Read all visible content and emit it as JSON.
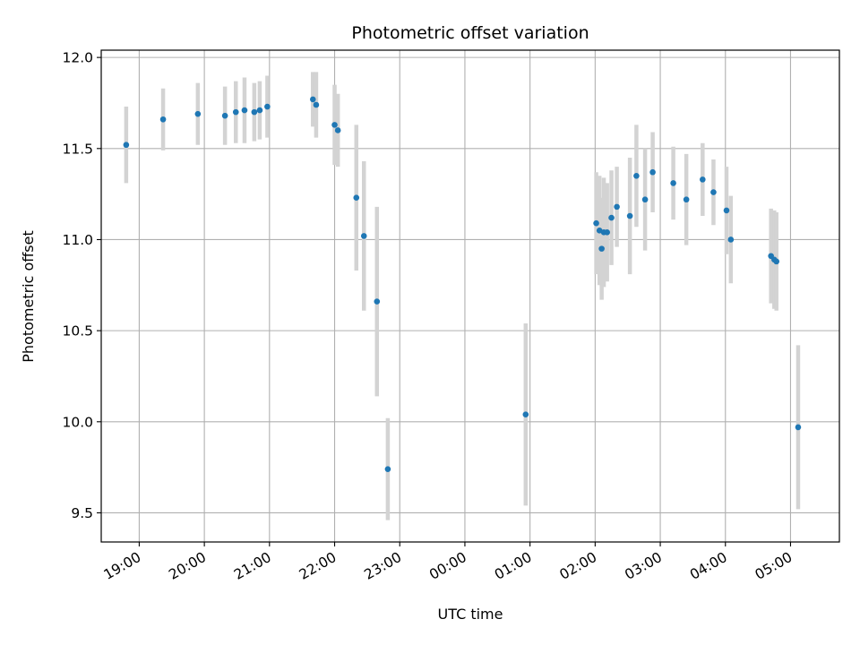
{
  "chart_data": {
    "type": "scatter",
    "title": "Photometric offset variation",
    "xlabel": "UTC time",
    "ylabel": "Photometric offset",
    "xlim": [
      "18:25",
      "05:45"
    ],
    "ylim": [
      9.34,
      12.04
    ],
    "x_ticks": [
      "19:00",
      "20:00",
      "21:00",
      "22:00",
      "23:00",
      "00:00",
      "01:00",
      "02:00",
      "03:00",
      "04:00",
      "05:00"
    ],
    "y_ticks": [
      "9.5",
      "10.0",
      "10.5",
      "11.0",
      "11.5",
      "12.0"
    ],
    "grid": true,
    "legend": "none",
    "colors": {
      "marker": "#1f77b4",
      "errorbar": "#d3d3d3",
      "grid": "#b0b0b0"
    },
    "points": [
      {
        "t": "18:48",
        "y": 11.52,
        "err": 0.21
      },
      {
        "t": "19:22",
        "y": 11.66,
        "err": 0.17
      },
      {
        "t": "19:54",
        "y": 11.69,
        "err": 0.17
      },
      {
        "t": "20:19",
        "y": 11.68,
        "err": 0.16
      },
      {
        "t": "20:29",
        "y": 11.7,
        "err": 0.17
      },
      {
        "t": "20:37",
        "y": 11.71,
        "err": 0.18
      },
      {
        "t": "20:46",
        "y": 11.7,
        "err": 0.16
      },
      {
        "t": "20:51",
        "y": 11.71,
        "err": 0.16
      },
      {
        "t": "20:58",
        "y": 11.73,
        "err": 0.17
      },
      {
        "t": "21:40",
        "y": 11.77,
        "err": 0.15
      },
      {
        "t": "21:43",
        "y": 11.74,
        "err": 0.18
      },
      {
        "t": "22:00",
        "y": 11.63,
        "err": 0.22
      },
      {
        "t": "22:03",
        "y": 11.6,
        "err": 0.2
      },
      {
        "t": "22:20",
        "y": 11.23,
        "err": 0.4
      },
      {
        "t": "22:27",
        "y": 11.02,
        "err": 0.41
      },
      {
        "t": "22:39",
        "y": 10.66,
        "err": 0.52
      },
      {
        "t": "22:49",
        "y": 9.74,
        "err": 0.28
      },
      {
        "t": "00:56",
        "y": 10.04,
        "err": 0.5
      },
      {
        "t": "02:01",
        "y": 11.09,
        "err": 0.28
      },
      {
        "t": "02:04",
        "y": 11.05,
        "err": 0.3
      },
      {
        "t": "02:06",
        "y": 10.95,
        "err": 0.28
      },
      {
        "t": "02:08",
        "y": 11.04,
        "err": 0.3
      },
      {
        "t": "02:11",
        "y": 11.04,
        "err": 0.27
      },
      {
        "t": "02:15",
        "y": 11.12,
        "err": 0.26
      },
      {
        "t": "02:20",
        "y": 11.18,
        "err": 0.22
      },
      {
        "t": "02:32",
        "y": 11.13,
        "err": 0.32
      },
      {
        "t": "02:38",
        "y": 11.35,
        "err": 0.28
      },
      {
        "t": "02:46",
        "y": 11.22,
        "err": 0.28
      },
      {
        "t": "02:53",
        "y": 11.37,
        "err": 0.22
      },
      {
        "t": "03:12",
        "y": 11.31,
        "err": 0.2
      },
      {
        "t": "03:24",
        "y": 11.22,
        "err": 0.25
      },
      {
        "t": "03:39",
        "y": 11.33,
        "err": 0.2
      },
      {
        "t": "03:49",
        "y": 11.26,
        "err": 0.18
      },
      {
        "t": "04:01",
        "y": 11.16,
        "err": 0.24
      },
      {
        "t": "04:05",
        "y": 11.0,
        "err": 0.24
      },
      {
        "t": "04:42",
        "y": 10.91,
        "err": 0.26
      },
      {
        "t": "04:45",
        "y": 10.89,
        "err": 0.27
      },
      {
        "t": "04:47",
        "y": 10.88,
        "err": 0.27
      },
      {
        "t": "05:07",
        "y": 9.97,
        "err": 0.45
      }
    ]
  }
}
